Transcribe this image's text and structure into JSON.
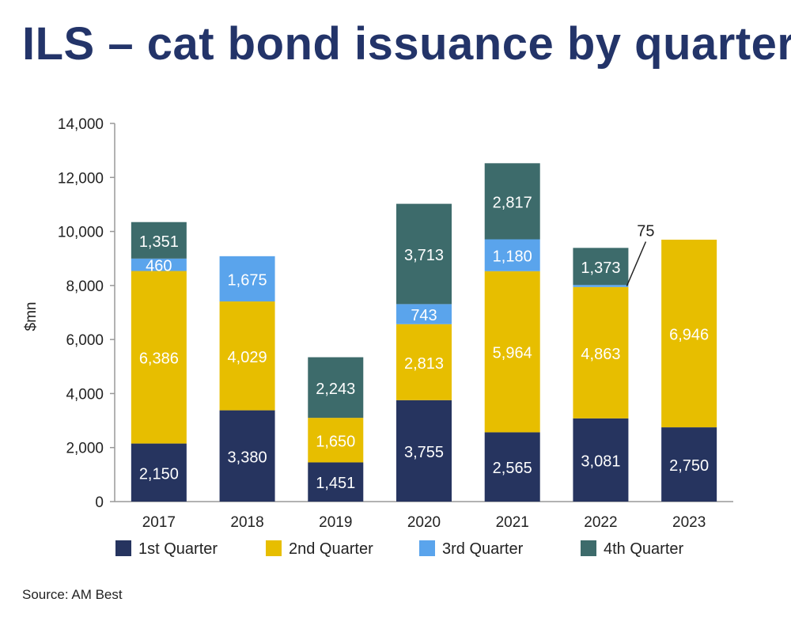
{
  "title": "ILS – cat bond issuance by quarter",
  "source": "Source: AM Best",
  "colors": {
    "title": "#233469",
    "q1": "#26345f",
    "q2": "#e7be00",
    "q3": "#5aa4ec",
    "q4": "#3d6b6b",
    "axis": "#999999"
  },
  "chart_data": {
    "type": "bar",
    "stacked": true,
    "categories": [
      "2017",
      "2018",
      "2019",
      "2020",
      "2021",
      "2022",
      "2023"
    ],
    "series": [
      {
        "name": "1st Quarter",
        "values": [
          2150,
          3380,
          1451,
          3755,
          2565,
          3081,
          2750
        ],
        "labels": [
          "2,150",
          "3,380",
          "1,451",
          "3,755",
          "2,565",
          "3,081",
          "2,750"
        ]
      },
      {
        "name": "2nd Quarter",
        "values": [
          6386,
          4029,
          1650,
          2813,
          5964,
          4863,
          6946
        ],
        "labels": [
          "6,386",
          "4,029",
          "1,650",
          "2,813",
          "5,964",
          "4,863",
          "6,946"
        ]
      },
      {
        "name": "3rd Quarter",
        "values": [
          460,
          1675,
          0,
          743,
          1180,
          75,
          0
        ],
        "labels": [
          "460",
          "1,675",
          "",
          "743",
          "1,180",
          "75",
          ""
        ]
      },
      {
        "name": "4th Quarter",
        "values": [
          1351,
          0,
          2243,
          3713,
          2817,
          1373,
          0
        ],
        "labels": [
          "1,351",
          "",
          "2,243",
          "3,713",
          "2,817",
          "1,373",
          ""
        ]
      }
    ],
    "ylabel": "$mn",
    "ylim": [
      0,
      14000
    ],
    "yticks": [
      0,
      2000,
      4000,
      6000,
      8000,
      10000,
      12000,
      14000
    ],
    "ytick_labels": [
      "0",
      "2,000",
      "4,000",
      "6,000",
      "8,000",
      "10,000",
      "12,000",
      "14,000"
    ],
    "legend_position": "bottom",
    "grid": false,
    "callout": {
      "category": "2022",
      "series": "3rd Quarter",
      "text": "75"
    }
  }
}
